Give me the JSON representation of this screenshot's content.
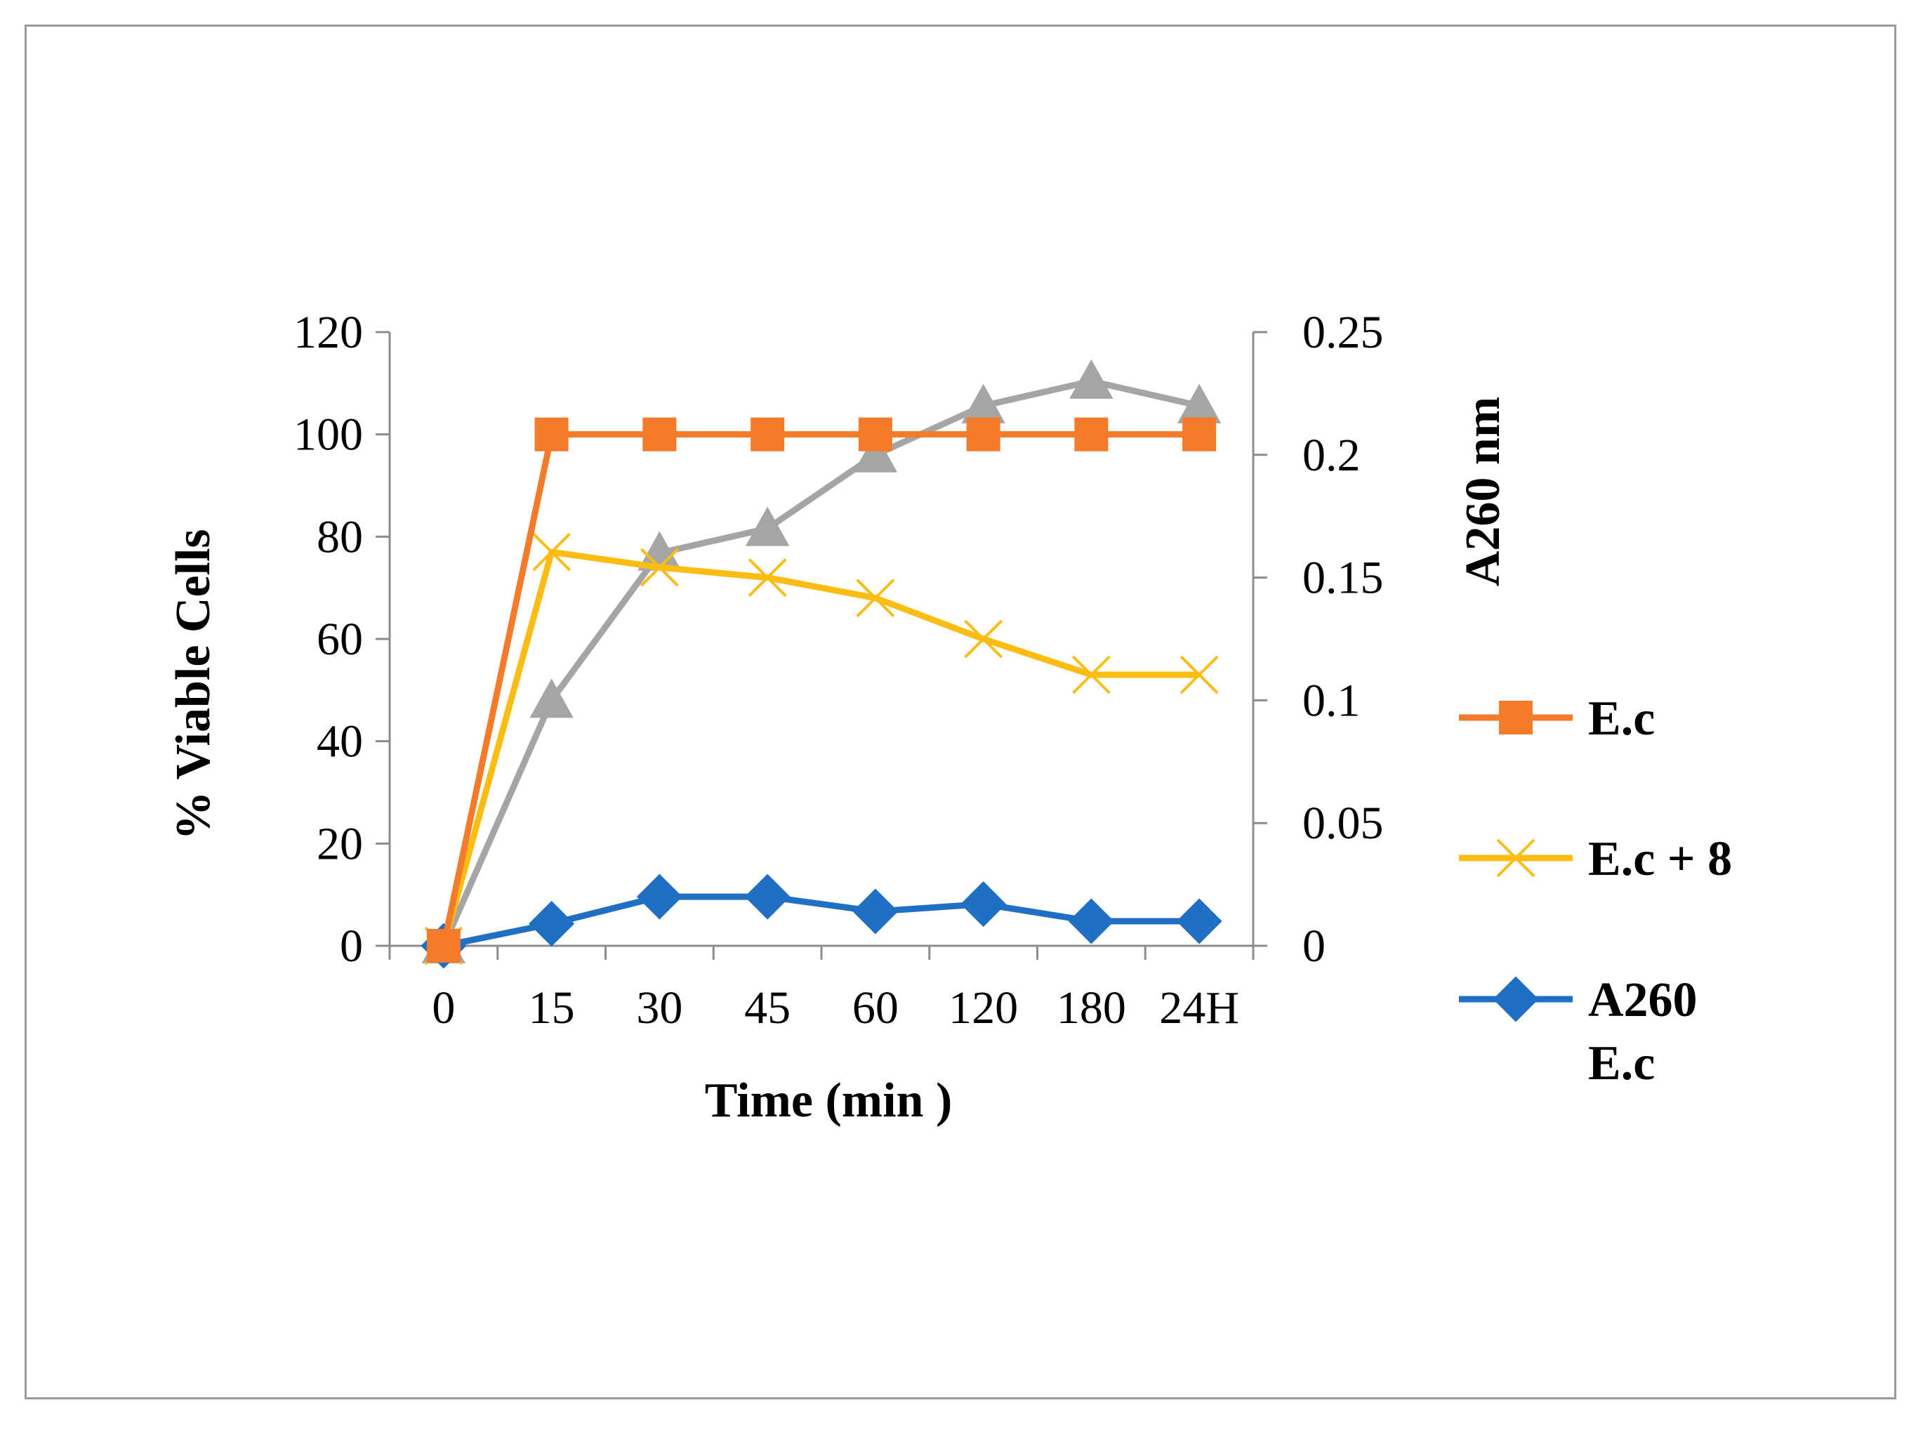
{
  "chart_data": {
    "type": "line",
    "categories": [
      "0",
      "15",
      "30",
      "45",
      "60",
      "120",
      "180",
      "24H"
    ],
    "xlabel": "Time  (min )",
    "ylabel": "% Viable Cells",
    "y2label": "A260 nm",
    "ylim": [
      0,
      120
    ],
    "y2lim": [
      0,
      0.25
    ],
    "yticks": [
      "0",
      "20",
      "40",
      "60",
      "80",
      "100",
      "120"
    ],
    "y2ticks": [
      "0",
      "0.05",
      "0.1",
      "0.15",
      "0.2",
      "0.25"
    ],
    "grid": false,
    "legend_position": "right",
    "series": [
      {
        "name": "E.c",
        "axis": "left",
        "color": "#f47b2a",
        "marker": "square",
        "values": [
          0,
          100,
          100,
          100,
          100,
          100,
          100,
          100
        ]
      },
      {
        "name": "E.c + 8",
        "axis": "left",
        "color": "#fbbd13",
        "marker": "x",
        "values": [
          0,
          77,
          74,
          72,
          68,
          60,
          53,
          53
        ]
      },
      {
        "name": "A260 E.c",
        "legend_lines": [
          "A260",
          "E.c"
        ],
        "axis": "right",
        "color": "#1f6fc5",
        "marker": "diamond",
        "values": [
          0,
          0.009,
          0.02,
          0.02,
          0.014,
          0.017,
          0.01,
          0.01
        ]
      },
      {
        "name": "",
        "axis": "right",
        "color": "#a5a5a5",
        "marker": "triangle",
        "in_legend": false,
        "values": [
          0,
          0.1,
          0.16,
          0.17,
          0.2,
          0.22,
          0.23,
          0.22
        ]
      }
    ]
  }
}
